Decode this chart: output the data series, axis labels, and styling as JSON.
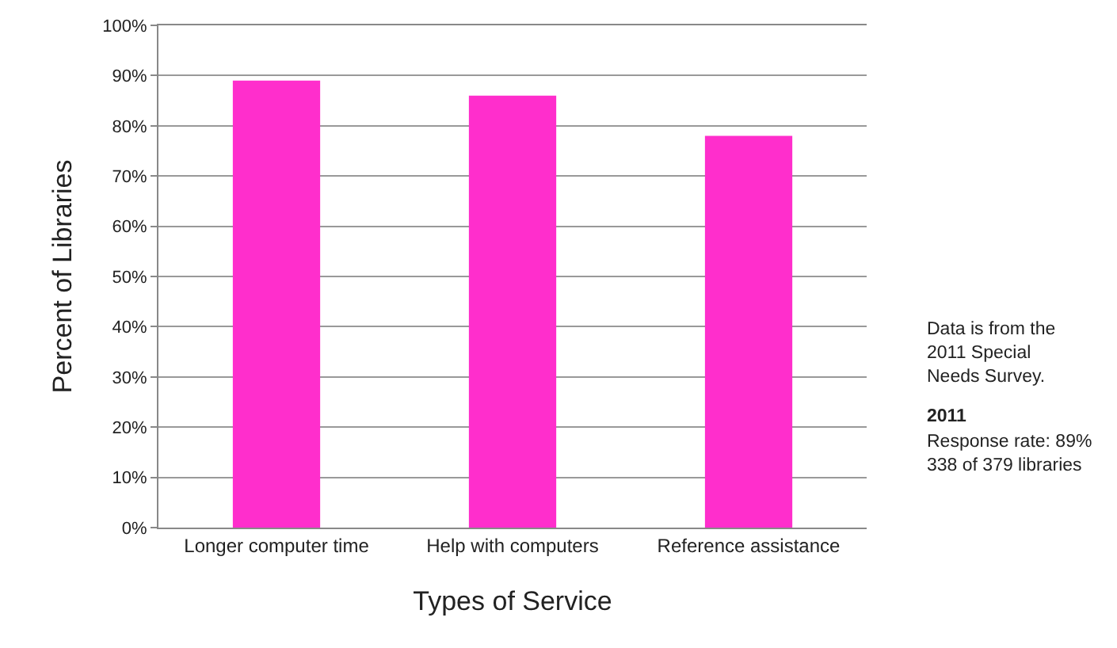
{
  "chart_data": {
    "type": "bar",
    "xlabel": "Types of Service",
    "ylabel": "Percent of Libraries",
    "categories": [
      "Longer computer time",
      "Help with computers",
      "Reference assistance"
    ],
    "values": [
      89,
      86,
      78
    ],
    "color": "#ff2ecc",
    "ylim": [
      0,
      100
    ],
    "yticks": [
      {
        "value": 0,
        "label": "0%"
      },
      {
        "value": 10,
        "label": "10%"
      },
      {
        "value": 20,
        "label": "20%"
      },
      {
        "value": 30,
        "label": "30%"
      },
      {
        "value": 40,
        "label": "40%"
      },
      {
        "value": 50,
        "label": "50%"
      },
      {
        "value": 60,
        "label": "60%"
      },
      {
        "value": 70,
        "label": "70%"
      },
      {
        "value": 80,
        "label": "80%"
      },
      {
        "value": 90,
        "label": "90%"
      },
      {
        "value": 100,
        "label": "100%"
      }
    ],
    "grid": "y",
    "annotations": [
      "Data is from the\n2011 Special\nNeeds Survey.",
      "2011",
      "Response rate: 89%\n338 of 379 libraries"
    ]
  }
}
